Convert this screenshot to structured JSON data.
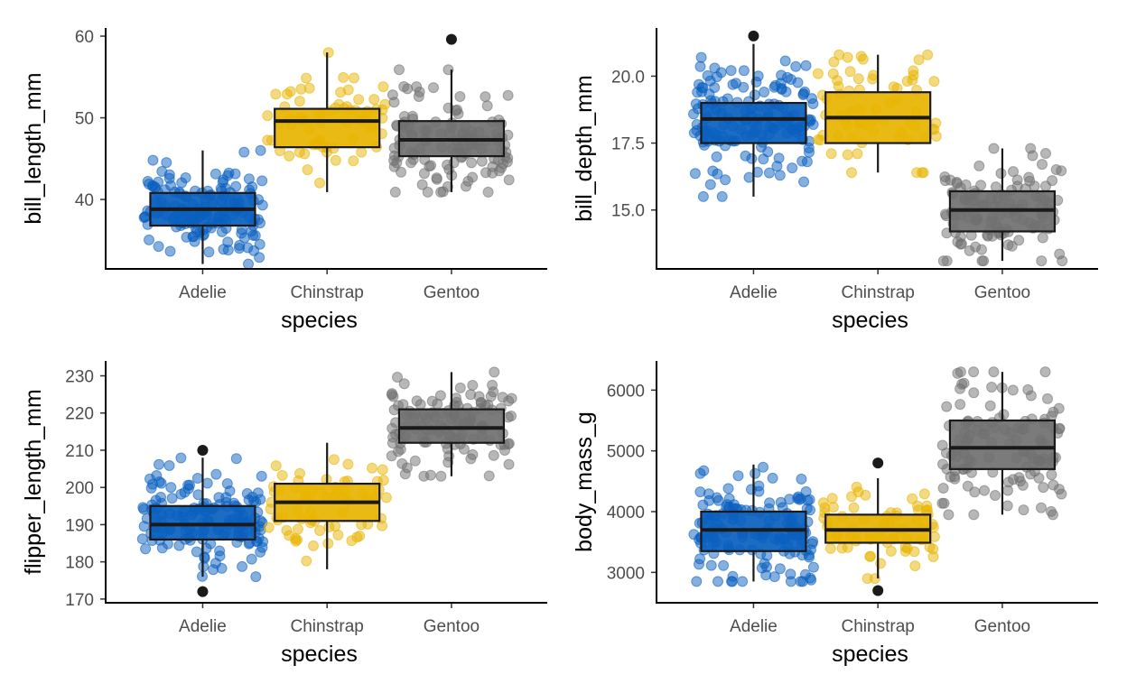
{
  "palette": {
    "Adelie": "#0a5fbf",
    "Chinstrap": "#e8b400",
    "Gentoo": "#707070"
  },
  "chart_data": [
    {
      "type": "box",
      "xlabel": "species",
      "ylabel": "bill_length_mm",
      "categories": [
        "Adelie",
        "Chinstrap",
        "Gentoo"
      ],
      "yticks": [
        40,
        50,
        60
      ],
      "ylim": [
        31.5,
        61
      ],
      "boxes": [
        {
          "q1": 36.8,
          "median": 38.8,
          "q3": 40.8,
          "whisker_low": 32.1,
          "whisker_high": 46.0,
          "outliers": []
        },
        {
          "q1": 46.4,
          "median": 49.6,
          "q3": 51.1,
          "whisker_low": 40.9,
          "whisker_high": 58.0,
          "outliers": []
        },
        {
          "q1": 45.3,
          "median": 47.3,
          "q3": 49.6,
          "whisker_low": 40.9,
          "whisker_high": 55.9,
          "outliers": [
            59.6
          ]
        }
      ]
    },
    {
      "type": "box",
      "xlabel": "species",
      "ylabel": "bill_depth_mm",
      "categories": [
        "Adelie",
        "Chinstrap",
        "Gentoo"
      ],
      "yticks": [
        15.0,
        17.5,
        20.0
      ],
      "ylim": [
        12.8,
        21.8
      ],
      "boxes": [
        {
          "q1": 17.5,
          "median": 18.4,
          "q3": 19.0,
          "whisker_low": 15.5,
          "whisker_high": 21.2,
          "outliers": [
            21.5
          ]
        },
        {
          "q1": 17.5,
          "median": 18.45,
          "q3": 19.4,
          "whisker_low": 16.4,
          "whisker_high": 20.8,
          "outliers": []
        },
        {
          "q1": 14.2,
          "median": 15.0,
          "q3": 15.7,
          "whisker_low": 13.1,
          "whisker_high": 17.3,
          "outliers": []
        }
      ]
    },
    {
      "type": "box",
      "xlabel": "species",
      "ylabel": "flipper_length_mm",
      "categories": [
        "Adelie",
        "Chinstrap",
        "Gentoo"
      ],
      "yticks": [
        170,
        180,
        190,
        200,
        210,
        220,
        230
      ],
      "ylim": [
        169,
        234
      ],
      "boxes": [
        {
          "q1": 186,
          "median": 190,
          "q3": 195,
          "whisker_low": 176,
          "whisker_high": 208,
          "outliers": [
            210,
            172
          ]
        },
        {
          "q1": 191,
          "median": 196,
          "q3": 201,
          "whisker_low": 178,
          "whisker_high": 212,
          "outliers": []
        },
        {
          "q1": 212,
          "median": 216,
          "q3": 221,
          "whisker_low": 203,
          "whisker_high": 231,
          "outliers": []
        }
      ]
    },
    {
      "type": "box",
      "xlabel": "species",
      "ylabel": "body_mass_g",
      "categories": [
        "Adelie",
        "Chinstrap",
        "Gentoo"
      ],
      "yticks": [
        3000,
        4000,
        5000,
        6000
      ],
      "ylim": [
        2500,
        6480
      ],
      "boxes": [
        {
          "q1": 3350,
          "median": 3700,
          "q3": 4000,
          "whisker_low": 2850,
          "whisker_high": 4775,
          "outliers": []
        },
        {
          "q1": 3488,
          "median": 3700,
          "q3": 3950,
          "whisker_low": 2900,
          "whisker_high": 4550,
          "outliers": [
            4800,
            2700
          ]
        },
        {
          "q1": 4700,
          "median": 5050,
          "q3": 5500,
          "whisker_low": 3950,
          "whisker_high": 6300,
          "outliers": []
        }
      ]
    }
  ]
}
